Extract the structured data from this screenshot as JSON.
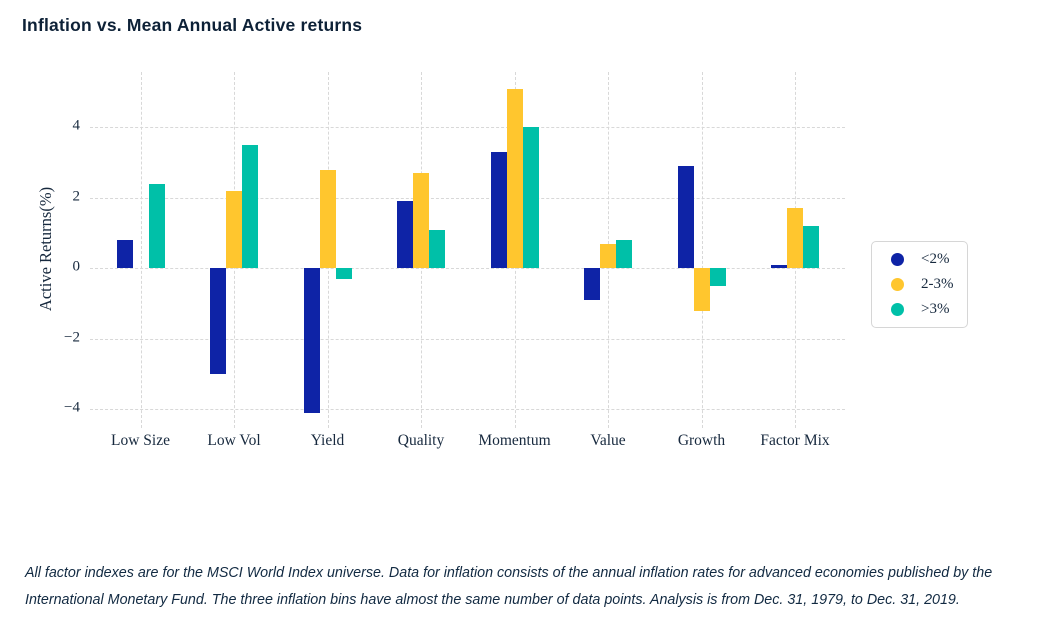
{
  "page": {
    "title": "Inflation vs. Mean Annual Active returns",
    "footnote_line1": "All factor indexes are for the MSCI World Index universe. Data for inflation consists of the annual inflation rates for advanced economies published by the",
    "footnote_line2": "International Monetary Fund. The three inflation bins have almost the same number of data points. Analysis is from Dec. 31, 1979, to Dec. 31, 2019."
  },
  "chart_data": {
    "type": "bar",
    "title": "Inflation vs. Mean Annual Active returns",
    "xlabel": "",
    "ylabel": "Active Returns(%)",
    "categories": [
      "Low Size",
      "Low Vol",
      "Yield",
      "Quality",
      "Momentum",
      "Value",
      "Growth",
      "Factor Mix"
    ],
    "series": [
      {
        "name": "<2%",
        "color": "#0e23a6",
        "values": [
          0.8,
          -3.0,
          -4.1,
          1.9,
          3.3,
          -0.9,
          2.9,
          0.1
        ]
      },
      {
        "name": "2-3%",
        "color": "#ffc62e",
        "values": [
          0.0,
          2.2,
          2.8,
          2.7,
          5.1,
          0.7,
          -1.2,
          1.7
        ]
      },
      {
        "name": ">3%",
        "color": "#00c0a8",
        "values": [
          2.4,
          3.5,
          -0.3,
          1.1,
          4.0,
          0.8,
          -0.5,
          1.2
        ]
      }
    ],
    "yticks": [
      {
        "value": 4,
        "label": "4"
      },
      {
        "value": 2,
        "label": "2"
      },
      {
        "value": 0,
        "label": "0"
      },
      {
        "value": -2,
        "label": "−2"
      },
      {
        "value": -4,
        "label": "−4"
      }
    ],
    "ylim": [
      -4.6,
      5.6
    ],
    "grid": "dashed horizontal and vertical gridlines",
    "legend_position": "right"
  },
  "colors": {
    "background": "#ffffff",
    "title_text": "#0d2137",
    "axis_text": "#17293e",
    "gridline": "#d8d8d8",
    "legend_border": "#d6d6d6"
  }
}
